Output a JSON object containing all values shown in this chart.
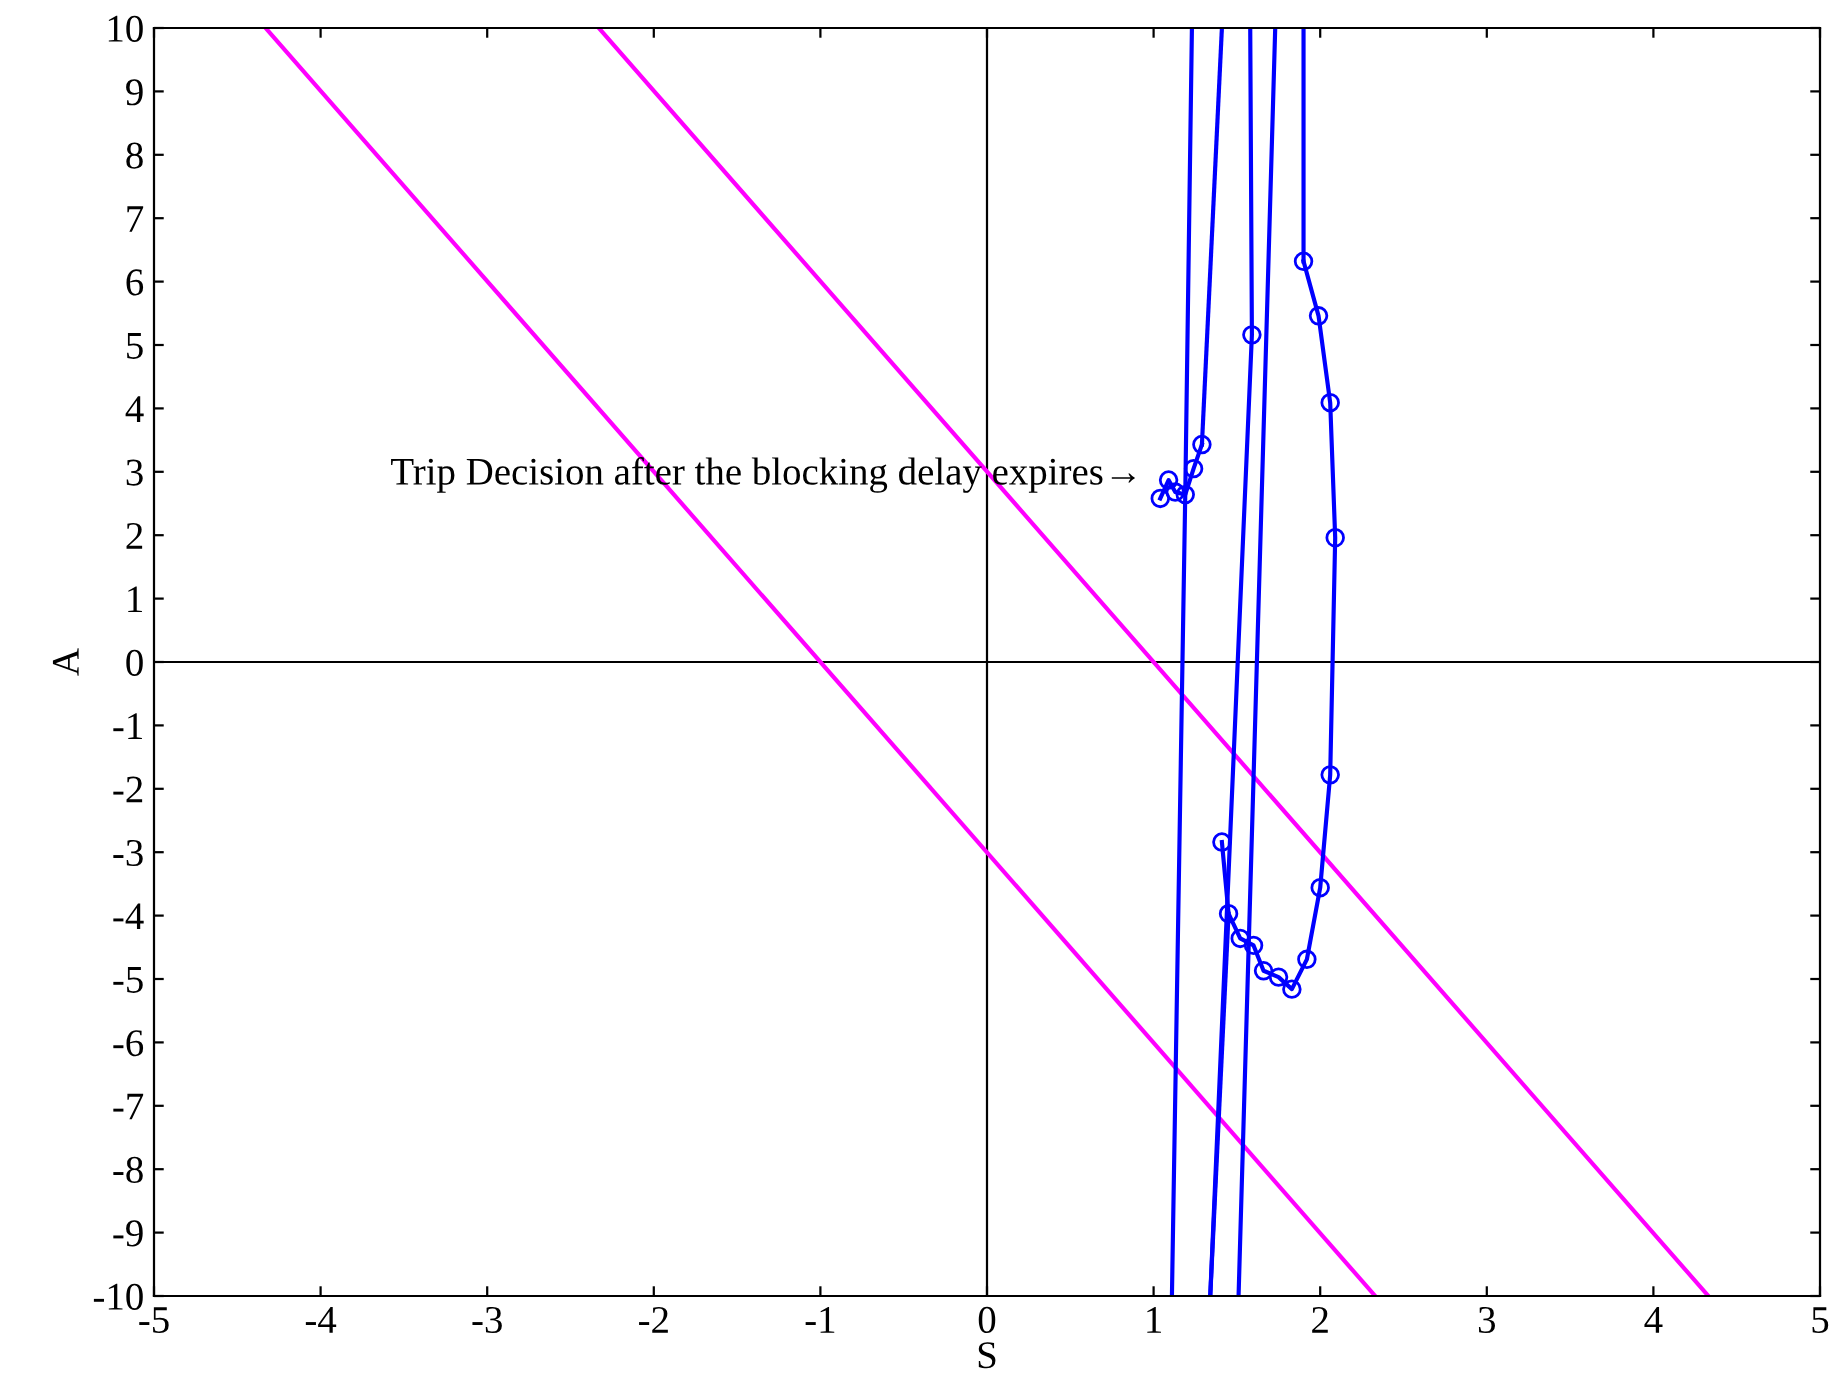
{
  "chart_data": {
    "type": "line",
    "xlabel": "S",
    "ylabel": "A",
    "xlim": [
      -5,
      5
    ],
    "ylim": [
      -10,
      10
    ],
    "xticks": [
      -5,
      -4,
      -3,
      -2,
      -1,
      0,
      1,
      2,
      3,
      4,
      5
    ],
    "yticks": [
      -10,
      -9,
      -8,
      -7,
      -6,
      -5,
      -4,
      -3,
      -2,
      -1,
      0,
      1,
      2,
      3,
      4,
      5,
      6,
      7,
      8,
      9,
      10
    ],
    "grid": false,
    "legend": false,
    "ref_lines": [
      {
        "axis": "x",
        "value": 0,
        "color": "#000000"
      }
    ],
    "series": [
      {
        "color": "#000000",
        "x": [
          -5,
          5
        ],
        "values": [
          0,
          0
        ]
      },
      {
        "color": "#ff00ff",
        "marker": "none",
        "x": [
          -4.33,
          2.33
        ],
        "values": [
          10,
          -10
        ]
      },
      {
        "color": "#ff00ff",
        "marker": "none",
        "x": [
          -2.33,
          4.33
        ],
        "values": [
          10,
          -10
        ]
      },
      {
        "color": "#0000ff",
        "marker": "circle",
        "x": [
          1.04,
          1.09,
          1.13,
          1.19,
          1.24,
          1.29
        ],
        "values": [
          2.58,
          2.87,
          2.68,
          2.64,
          3.05,
          3.43
        ]
      },
      {
        "color": "#0000ff",
        "marker": "none",
        "x": [
          1.29,
          1.41
        ],
        "values": [
          3.43,
          10
        ]
      },
      {
        "color": "#0000ff",
        "marker": "none",
        "x": [
          1.11,
          1.19,
          1.23
        ],
        "values": [
          -10,
          2.64,
          10
        ]
      },
      {
        "color": "#0000ff",
        "x": [
          1.34,
          1.45
        ],
        "values": [
          -10,
          -3.97
        ]
      },
      {
        "color": "#0000ff",
        "marker": "circle",
        "x": [
          1.41,
          1.45,
          1.52,
          1.6,
          1.66,
          1.75,
          1.83,
          1.92,
          2.0,
          2.06,
          2.09,
          2.06,
          1.99,
          1.9
        ],
        "values": [
          -2.84,
          -3.97,
          -4.36,
          -4.47,
          -4.87,
          -4.97,
          -5.16,
          -4.69,
          -3.56,
          -1.78,
          1.96,
          4.09,
          5.46,
          6.32
        ]
      },
      {
        "color": "#0000ff",
        "marker": "none",
        "x": [
          1.9,
          1.9
        ],
        "values": [
          6.32,
          10
        ]
      },
      {
        "color": "#0000ff",
        "marker": "none",
        "x": [
          1.51,
          1.73
        ],
        "values": [
          -10,
          10
        ]
      },
      {
        "color": "#0000ff",
        "marker": "none",
        "x": [
          1.34,
          1.59,
          1.58
        ],
        "values": [
          -10,
          5.16,
          10
        ]
      },
      {
        "color": "#0000ff",
        "marker": "circle",
        "x": [
          1.59
        ],
        "values": [
          5.16
        ]
      }
    ],
    "annotations": [
      "Trip Decision after the blocking delay expires→"
    ]
  }
}
